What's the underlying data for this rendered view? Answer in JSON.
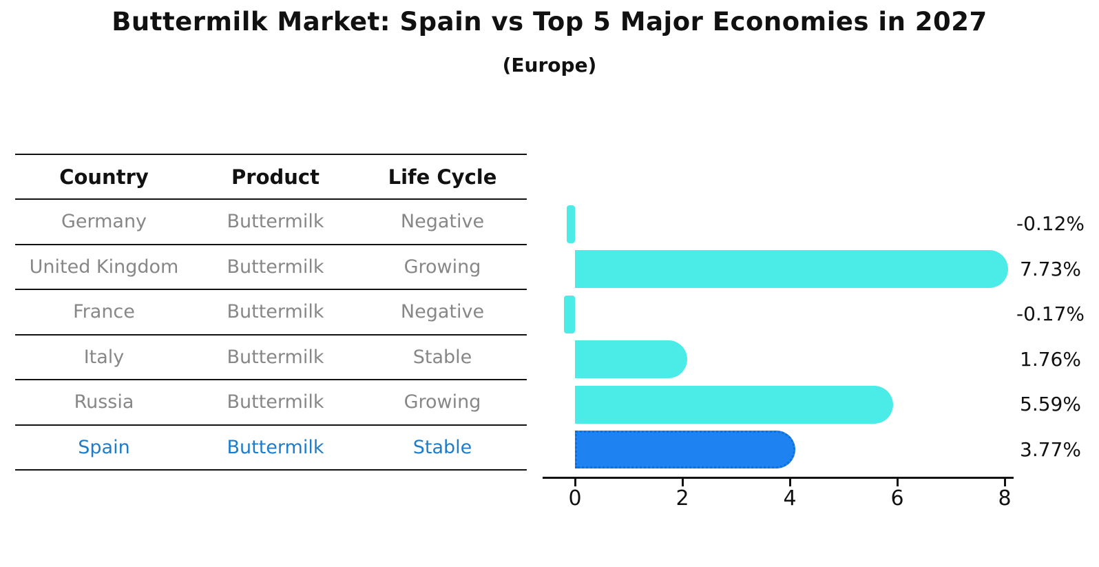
{
  "title": "Buttermilk Market: Spain vs Top 5 Major Economies in 2027",
  "subtitle": "(Europe)",
  "table": {
    "headers": [
      "Country",
      "Product",
      "Life Cycle"
    ],
    "rows": [
      {
        "country": "Germany",
        "product": "Buttermilk",
        "life_cycle": "Negative",
        "highlight": false
      },
      {
        "country": "United Kingdom",
        "product": "Buttermilk",
        "life_cycle": "Growing",
        "highlight": false
      },
      {
        "country": "France",
        "product": "Buttermilk",
        "life_cycle": "Negative",
        "highlight": false
      },
      {
        "country": "Italy",
        "product": "Buttermilk",
        "life_cycle": "Stable",
        "highlight": false
      },
      {
        "country": "Russia",
        "product": "Buttermilk",
        "life_cycle": "Growing",
        "highlight": false
      },
      {
        "country": "Spain",
        "product": "Buttermilk",
        "life_cycle": "Stable",
        "highlight": true
      }
    ]
  },
  "chart_data": {
    "type": "bar",
    "orientation": "horizontal",
    "categories": [
      "Germany",
      "United Kingdom",
      "France",
      "Italy",
      "Russia",
      "Spain"
    ],
    "values": [
      -0.12,
      7.73,
      -0.17,
      1.76,
      5.59,
      3.77
    ],
    "labels": [
      "-0.12%",
      "7.73%",
      "-0.17%",
      "1.76%",
      "5.59%",
      "3.77%"
    ],
    "unit": "%",
    "xticks": [
      0,
      2,
      4,
      6,
      8
    ],
    "xlim": [
      -0.6,
      8.2
    ],
    "grid": false,
    "legend": false,
    "highlight_category": "Spain",
    "colors": {
      "default_bar": "#4BEBE8",
      "highlight_bar": "#1E82F0",
      "highlight_border": "#0E6FD8",
      "highlight_text": "#1F7CC9",
      "cell_text": "#878787",
      "line": "#111111"
    }
  }
}
